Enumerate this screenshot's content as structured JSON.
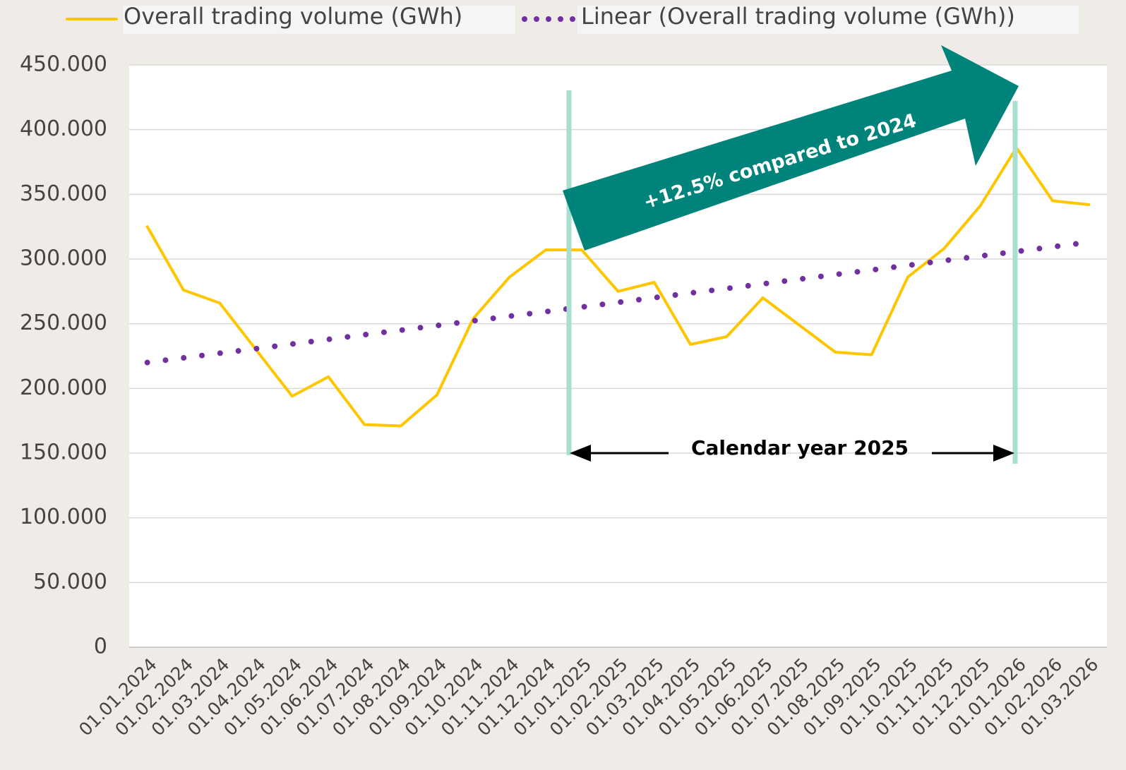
{
  "chart_data": {
    "type": "line",
    "categories": [
      "01.01.2024",
      "01.02.2024",
      "01.03.2024",
      "01.04.2024",
      "01.05.2024",
      "01.06.2024",
      "01.07.2024",
      "01.08.2024",
      "01.09.2024",
      "01.10.2024",
      "01.11.2024",
      "01.12.2024",
      "01.01.2025",
      "01.02.2025",
      "01.03.2025",
      "01.04.2025",
      "01.05.2025",
      "01.06.2025",
      "01.07.2025",
      "01.08.2025",
      "01.09.2025",
      "01.10.2025",
      "01.11.2025",
      "01.12.2025",
      "01.01.2026",
      "01.02.2026",
      "01.03.2026"
    ],
    "series": [
      {
        "name": "Overall trading volume (GWh)",
        "color": "#ffc600",
        "style": "solid",
        "values": [
          325000,
          276000,
          266000,
          230000,
          194000,
          209000,
          172000,
          171000,
          195000,
          254000,
          286000,
          307000,
          307000,
          275000,
          282000,
          234000,
          240000,
          270000,
          249000,
          228000,
          226000,
          286000,
          308000,
          341000,
          386000,
          345000,
          342000
        ]
      },
      {
        "name": "Linear (Overall trading volume (GWh))",
        "color": "#7030a0",
        "style": "dotted",
        "values": [
          220000,
          223600,
          227200,
          230700,
          234300,
          237900,
          241500,
          245000,
          248600,
          252200,
          255800,
          259300,
          262900,
          266500,
          270100,
          273700,
          277200,
          280800,
          284400,
          288000,
          291500,
          295100,
          298700,
          302300,
          305800,
          309400,
          313000
        ]
      }
    ],
    "ylim": [
      0,
      450000
    ],
    "yticks": [
      0,
      {
        "value": 50000,
        "label": "50.000"
      },
      {
        "value": 100000,
        "label": "100.000"
      },
      {
        "value": 150000,
        "label": "150.000"
      },
      {
        "value": 200000,
        "label": "200.000"
      },
      {
        "value": 250000,
        "label": "250.000"
      },
      {
        "value": 300000,
        "label": "300.000"
      },
      {
        "value": 350000,
        "label": "350.000"
      },
      {
        "value": 400000,
        "label": "400.000"
      },
      {
        "value": 450000,
        "label": "450.000"
      }
    ],
    "grid": true,
    "annotations": [
      "+12.5% compared to 2024",
      "Calendar year 2025"
    ]
  }
}
